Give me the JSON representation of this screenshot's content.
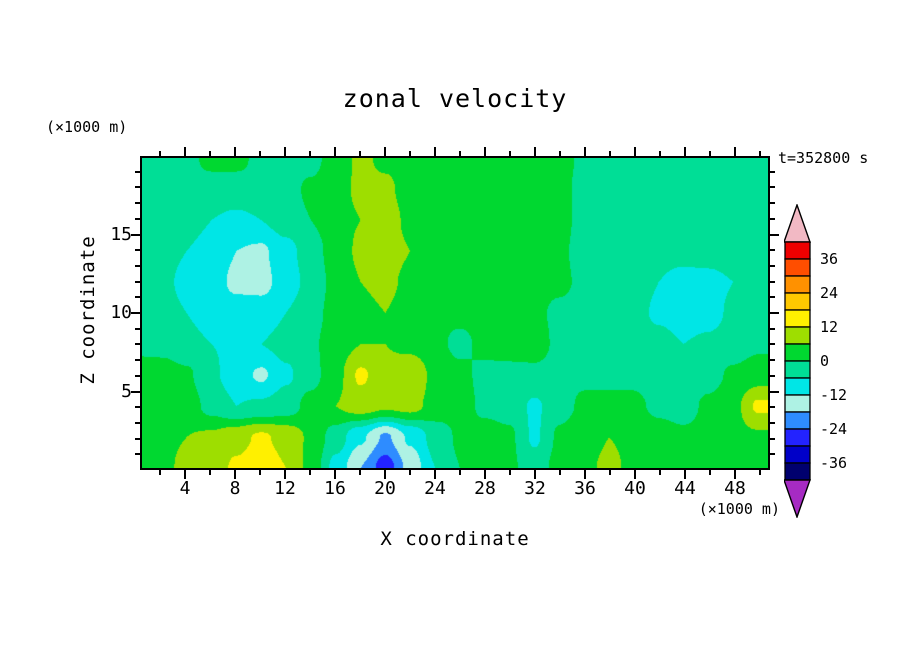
{
  "title": "zonal velocity",
  "time_label": "t=352800 s",
  "axes": {
    "x": {
      "label": "X coordinate",
      "unit": "(×1000 m)"
    },
    "z": {
      "label": "Z coordinate",
      "unit": "(×1000 m)"
    }
  },
  "chart_data": {
    "type": "heatmap",
    "title": "zonal velocity",
    "xlabel": "X coordinate",
    "ylabel": "Z coordinate",
    "x_unit": "(×1000 m)",
    "z_unit": "(×1000 m)",
    "time_label": "t=352800 s",
    "x": [
      0,
      2,
      4,
      6,
      8,
      10,
      12,
      14,
      16,
      18,
      20,
      22,
      24,
      26,
      28,
      30,
      32,
      34,
      36,
      38,
      40,
      42,
      44,
      46,
      48,
      50
    ],
    "z": [
      0,
      2,
      4,
      6,
      8,
      10,
      12,
      14,
      16,
      18,
      20
    ],
    "values": [
      [
        3,
        5,
        7,
        9,
        13,
        16,
        12,
        4,
        -8,
        -18,
        -27,
        -16,
        -6,
        0,
        2,
        1,
        -3,
        2,
        5,
        7,
        5,
        2,
        1,
        2,
        3,
        4
      ],
      [
        4,
        5,
        6,
        7,
        10,
        13,
        10,
        5,
        -3,
        -11,
        -19,
        -11,
        -4,
        1,
        2,
        1,
        -7,
        1,
        4,
        6,
        5,
        2,
        1,
        2,
        4,
        5
      ],
      [
        3,
        4,
        3,
        -2,
        -6,
        -5,
        -3,
        2,
        6,
        9,
        7,
        8,
        4,
        2,
        -1,
        -2,
        -7,
        -2,
        1,
        2,
        1,
        -1,
        -2,
        1,
        4,
        13
      ],
      [
        2,
        3,
        1,
        -5,
        -9,
        -13,
        -7,
        -2,
        4,
        13,
        8,
        12,
        4,
        1,
        -1,
        -2,
        -1,
        -2,
        -1,
        -2,
        -1,
        -3,
        -4,
        -2,
        1,
        3
      ],
      [
        -1,
        -2,
        -4,
        -6,
        -7,
        -6,
        -4,
        -1,
        3,
        6,
        6,
        4,
        1,
        -1,
        1,
        3,
        2,
        -1,
        -2,
        -1,
        -2,
        -4,
        -6,
        -5,
        -3,
        -1
      ],
      [
        -2,
        -3,
        -6,
        -9,
        -10,
        -9,
        -6,
        -2,
        2,
        5,
        6,
        4,
        1,
        1,
        2,
        2,
        1,
        -1,
        -2,
        -2,
        -4,
        -7,
        -9,
        -8,
        -5,
        -2
      ],
      [
        -2,
        -4,
        -8,
        -10,
        -13,
        -14,
        -9,
        -4,
        2,
        6,
        7,
        5,
        2,
        2,
        3,
        3,
        2,
        1,
        -1,
        -2,
        -3,
        -6,
        -8,
        -8,
        -6,
        -3
      ],
      [
        -2,
        -3,
        -6,
        -9,
        -12,
        -13,
        -8,
        -3,
        3,
        7,
        8,
        6,
        3,
        1,
        3,
        3,
        3,
        1,
        -2,
        -2,
        -2,
        -4,
        -4,
        -3,
        -2,
        -2
      ],
      [
        -2,
        -2,
        -3,
        -6,
        -7,
        -6,
        -3,
        0,
        4,
        6,
        8,
        5,
        3,
        3,
        3,
        3,
        3,
        2,
        -2,
        -2,
        -2,
        -3,
        -3,
        -3,
        -2,
        -2
      ],
      [
        -2,
        -2,
        -2,
        -3,
        -3,
        -2,
        -2,
        1,
        4,
        7,
        7,
        4,
        4,
        3,
        3,
        3,
        3,
        2,
        -2,
        -2,
        -2,
        -2,
        -2,
        -2,
        -2,
        -2
      ],
      [
        -2,
        -2,
        -2,
        2,
        2,
        -2,
        -2,
        -2,
        3,
        7,
        5,
        3,
        3,
        3,
        3,
        3,
        3,
        2,
        -1,
        -2,
        -2,
        -2,
        -1,
        -1,
        -2,
        -2
      ]
    ],
    "levels": [
      -42,
      -36,
      -30,
      -24,
      -18,
      -12,
      -6,
      0,
      6,
      12,
      18,
      24,
      30,
      36,
      42
    ],
    "band_colors": [
      "#00006E",
      "#0000C8",
      "#2323FF",
      "#2E8CFF",
      "#AEF2E4",
      "#00E6E6",
      "#00DE96",
      "#00D830",
      "#9EDE00",
      "#FFF000",
      "#FFC800",
      "#FF9100",
      "#FF4E00",
      "#EE0000"
    ],
    "under_color": "#A62BC3",
    "over_color": "#F2B9C4",
    "x_range": [
      0.4,
      50.8
    ],
    "z_range": [
      0,
      20
    ],
    "x_ticks": {
      "major": [
        4,
        8,
        12,
        16,
        20,
        24,
        28,
        32,
        36,
        40,
        44,
        48
      ],
      "minor_step": 2
    },
    "z_ticks": {
      "major": [
        5,
        10,
        15
      ],
      "minor_step": 1
    },
    "colorbar_labels": [
      36,
      24,
      12,
      0,
      -12,
      -24,
      -36
    ],
    "background": "#FFFFFF"
  }
}
